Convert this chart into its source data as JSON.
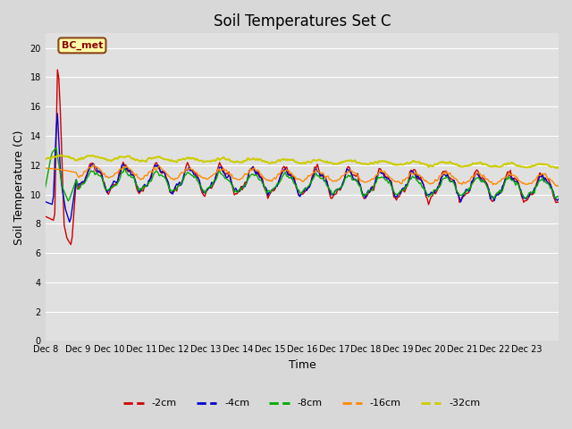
{
  "title": "Soil Temperatures Set C",
  "xlabel": "Time",
  "ylabel": "Soil Temperature (C)",
  "ylim": [
    0,
    21
  ],
  "yticks": [
    0,
    2,
    4,
    6,
    8,
    10,
    12,
    14,
    16,
    18,
    20
  ],
  "xlabels": [
    "Dec 8",
    "Dec 9",
    "Dec 10",
    "Dec 11",
    "Dec 12",
    "Dec 13",
    "Dec 14",
    "Dec 15",
    "Dec 16",
    "Dec 17",
    "Dec 18",
    "Dec 19",
    "Dec 20",
    "Dec 21",
    "Dec 22",
    "Dec 23"
  ],
  "annotation_text": "BC_met",
  "colors": {
    "-2cm": "#cc0000",
    "-4cm": "#0000cc",
    "-8cm": "#00aa00",
    "-16cm": "#ff8800",
    "-32cm": "#cccc00"
  },
  "legend_labels": [
    "-2cm",
    "-4cm",
    "-8cm",
    "-16cm",
    "-32cm"
  ],
  "plot_bg_color": "#e0e0e0",
  "fig_bg_color": "#d8d8d8",
  "title_fontsize": 12,
  "axis_label_fontsize": 9,
  "tick_fontsize": 7,
  "n_days": 16
}
